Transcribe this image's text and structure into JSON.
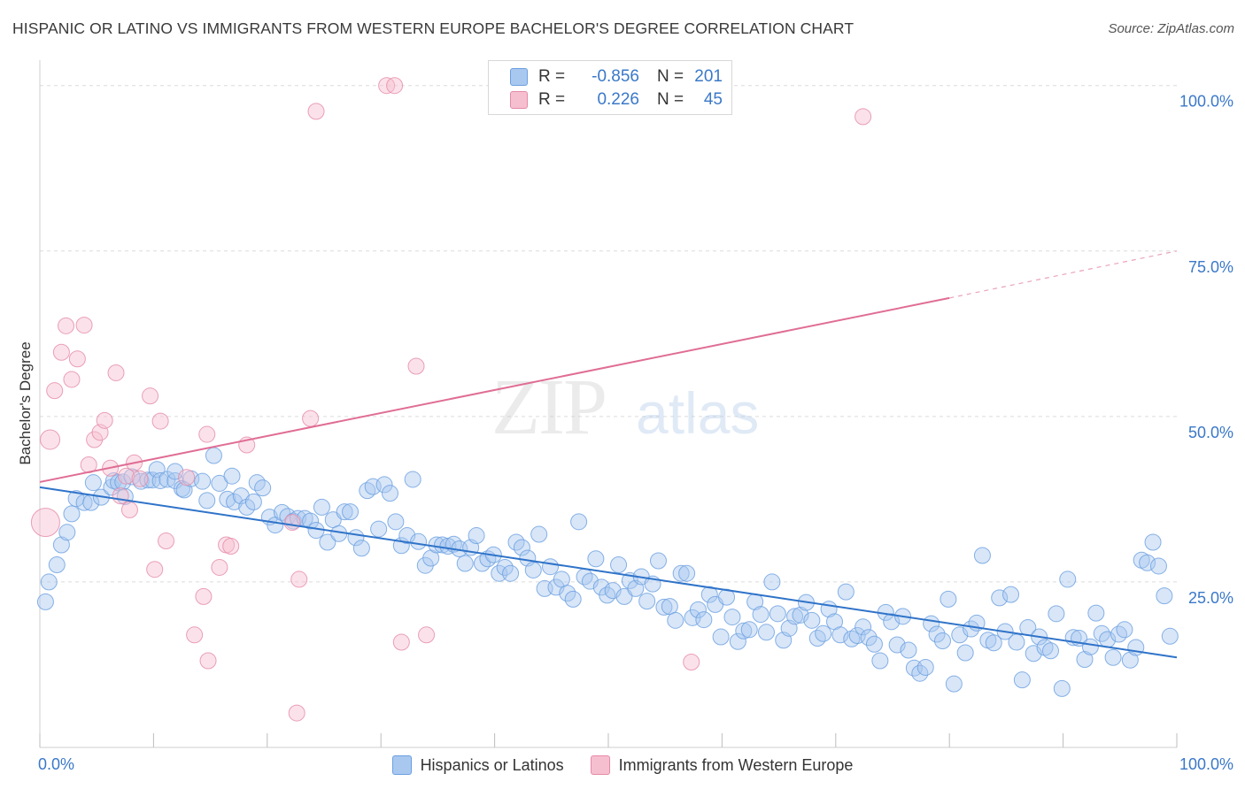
{
  "title": "HISPANIC OR LATINO VS IMMIGRANTS FROM WESTERN EUROPE BACHELOR'S DEGREE CORRELATION CHART",
  "source": "Source: ZipAtlas.com",
  "watermark": {
    "zip": "ZIP",
    "atlas": "atlas"
  },
  "stats": [
    {
      "r_label": "R =",
      "r_value": "-0.856",
      "n_label": "N =",
      "n_value": "201",
      "color": "#a9c8f0"
    },
    {
      "r_label": "R =",
      "r_value": "0.226",
      "n_label": "N =",
      "n_value": "45",
      "color": "#f6bfd0"
    }
  ],
  "chart_data": {
    "type": "scatter",
    "title": "HISPANIC OR LATINO VS IMMIGRANTS FROM WESTERN EUROPE BACHELOR'S DEGREE CORRELATION CHART",
    "xlabel": "",
    "ylabel": "Bachelor's Degree",
    "x_tick_labels": [
      "0.0%",
      "100.0%"
    ],
    "y_tick_labels": [
      "25.0%",
      "50.0%",
      "75.0%",
      "100.0%"
    ],
    "xlim": [
      0,
      100
    ],
    "ylim": [
      0,
      102.5
    ],
    "grid": true,
    "legend_position": "bottom",
    "series": [
      {
        "name": "Hispanics or Latinos",
        "color": "#6a9fe0",
        "fill": "#a9c8f0",
        "trend": {
          "x0": 0,
          "y0": 39.3,
          "x1": 100,
          "y1": 13.6
        },
        "points": [
          [
            0.5,
            22.0
          ],
          [
            0.8,
            25.0
          ],
          [
            1.5,
            27.6
          ],
          [
            1.9,
            30.6
          ],
          [
            2.4,
            32.5
          ],
          [
            2.8,
            35.3
          ],
          [
            3.2,
            37.6
          ],
          [
            3.9,
            37.0
          ],
          [
            4.5,
            37.0
          ],
          [
            4.7,
            40.0
          ],
          [
            5.4,
            37.8
          ],
          [
            6.3,
            39.3
          ],
          [
            6.5,
            40.3
          ],
          [
            6.9,
            40.0
          ],
          [
            7.3,
            40.1
          ],
          [
            7.5,
            37.9
          ],
          [
            8.1,
            40.9
          ],
          [
            8.9,
            40.2
          ],
          [
            9.5,
            40.4
          ],
          [
            9.9,
            40.4
          ],
          [
            10.3,
            42.0
          ],
          [
            10.6,
            40.3
          ],
          [
            11.2,
            40.5
          ],
          [
            11.9,
            40.3
          ],
          [
            11.9,
            41.7
          ],
          [
            12.5,
            39.1
          ],
          [
            12.7,
            38.9
          ],
          [
            13.3,
            40.6
          ],
          [
            14.3,
            40.2
          ],
          [
            14.7,
            37.3
          ],
          [
            15.3,
            44.1
          ],
          [
            15.8,
            39.9
          ],
          [
            16.5,
            37.5
          ],
          [
            16.9,
            41.0
          ],
          [
            17.1,
            37.1
          ],
          [
            17.7,
            38.0
          ],
          [
            18.2,
            36.3
          ],
          [
            18.8,
            37.1
          ],
          [
            19.1,
            40.0
          ],
          [
            19.6,
            39.2
          ],
          [
            20.2,
            34.8
          ],
          [
            20.7,
            33.6
          ],
          [
            21.3,
            35.5
          ],
          [
            21.8,
            34.9
          ],
          [
            22.3,
            34.2
          ],
          [
            22.7,
            34.6
          ],
          [
            23.3,
            34.6
          ],
          [
            23.8,
            34.2
          ],
          [
            24.3,
            32.8
          ],
          [
            24.8,
            36.3
          ],
          [
            25.3,
            31.0
          ],
          [
            25.8,
            34.4
          ],
          [
            26.3,
            32.3
          ],
          [
            26.8,
            35.6
          ],
          [
            27.3,
            35.6
          ],
          [
            27.8,
            31.7
          ],
          [
            28.3,
            30.1
          ],
          [
            28.8,
            38.8
          ],
          [
            29.3,
            39.4
          ],
          [
            29.8,
            33.0
          ],
          [
            30.3,
            39.7
          ],
          [
            30.8,
            38.4
          ],
          [
            31.3,
            34.1
          ],
          [
            31.8,
            30.5
          ],
          [
            32.3,
            32.0
          ],
          [
            32.8,
            40.5
          ],
          [
            33.3,
            31.1
          ],
          [
            33.9,
            27.5
          ],
          [
            34.4,
            28.6
          ],
          [
            34.9,
            30.6
          ],
          [
            35.4,
            30.6
          ],
          [
            35.9,
            30.4
          ],
          [
            36.4,
            30.7
          ],
          [
            36.9,
            30.0
          ],
          [
            37.4,
            27.8
          ],
          [
            37.9,
            30.2
          ],
          [
            38.4,
            32.0
          ],
          [
            38.9,
            27.8
          ],
          [
            39.4,
            28.5
          ],
          [
            39.9,
            29.1
          ],
          [
            40.4,
            26.3
          ],
          [
            40.9,
            27.2
          ],
          [
            41.4,
            26.3
          ],
          [
            41.9,
            31.0
          ],
          [
            42.4,
            30.2
          ],
          [
            42.9,
            28.6
          ],
          [
            43.4,
            26.8
          ],
          [
            43.9,
            32.2
          ],
          [
            44.4,
            24.0
          ],
          [
            44.9,
            27.3
          ],
          [
            45.4,
            24.2
          ],
          [
            45.9,
            25.4
          ],
          [
            46.4,
            23.3
          ],
          [
            46.9,
            22.4
          ],
          [
            47.4,
            34.1
          ],
          [
            47.9,
            25.8
          ],
          [
            48.4,
            25.1
          ],
          [
            48.9,
            28.5
          ],
          [
            49.4,
            24.2
          ],
          [
            49.9,
            23.0
          ],
          [
            50.4,
            23.7
          ],
          [
            50.9,
            27.6
          ],
          [
            51.4,
            22.8
          ],
          [
            51.9,
            25.2
          ],
          [
            52.4,
            24.0
          ],
          [
            52.9,
            25.8
          ],
          [
            53.4,
            22.1
          ],
          [
            53.9,
            24.7
          ],
          [
            54.4,
            28.2
          ],
          [
            54.9,
            21.2
          ],
          [
            55.4,
            21.3
          ],
          [
            55.9,
            19.2
          ],
          [
            56.4,
            26.3
          ],
          [
            56.9,
            26.3
          ],
          [
            57.4,
            19.6
          ],
          [
            57.9,
            20.8
          ],
          [
            58.4,
            19.3
          ],
          [
            58.9,
            23.1
          ],
          [
            59.4,
            21.6
          ],
          [
            59.9,
            16.7
          ],
          [
            60.4,
            22.7
          ],
          [
            60.9,
            19.7
          ],
          [
            61.4,
            16.0
          ],
          [
            61.9,
            17.6
          ],
          [
            62.4,
            17.8
          ],
          [
            62.9,
            22.0
          ],
          [
            63.4,
            20.1
          ],
          [
            63.9,
            17.4
          ],
          [
            64.4,
            25.0
          ],
          [
            64.9,
            20.2
          ],
          [
            65.4,
            16.2
          ],
          [
            65.9,
            18.0
          ],
          [
            66.4,
            19.8
          ],
          [
            66.9,
            20.0
          ],
          [
            67.4,
            21.9
          ],
          [
            67.9,
            19.2
          ],
          [
            68.4,
            16.5
          ],
          [
            68.9,
            17.2
          ],
          [
            69.4,
            20.9
          ],
          [
            69.9,
            19.0
          ],
          [
            70.4,
            17.0
          ],
          [
            70.9,
            23.5
          ],
          [
            71.4,
            16.4
          ],
          [
            71.9,
            16.9
          ],
          [
            72.4,
            18.2
          ],
          [
            72.9,
            16.6
          ],
          [
            73.4,
            15.6
          ],
          [
            73.9,
            13.1
          ],
          [
            74.4,
            20.4
          ],
          [
            74.9,
            19.0
          ],
          [
            75.4,
            15.5
          ],
          [
            75.9,
            19.8
          ],
          [
            76.4,
            14.7
          ],
          [
            76.9,
            12.0
          ],
          [
            77.4,
            11.2
          ],
          [
            77.9,
            12.1
          ],
          [
            78.4,
            18.7
          ],
          [
            78.9,
            17.1
          ],
          [
            79.4,
            16.1
          ],
          [
            79.9,
            22.4
          ],
          [
            80.4,
            9.6
          ],
          [
            80.9,
            17.0
          ],
          [
            81.4,
            14.3
          ],
          [
            81.9,
            17.9
          ],
          [
            82.4,
            18.8
          ],
          [
            82.9,
            29.0
          ],
          [
            83.4,
            16.2
          ],
          [
            83.9,
            15.8
          ],
          [
            84.4,
            22.6
          ],
          [
            84.9,
            17.5
          ],
          [
            85.4,
            23.1
          ],
          [
            85.9,
            15.9
          ],
          [
            86.4,
            10.2
          ],
          [
            86.9,
            18.1
          ],
          [
            87.4,
            14.2
          ],
          [
            87.9,
            16.7
          ],
          [
            88.4,
            15.1
          ],
          [
            88.9,
            14.6
          ],
          [
            89.4,
            20.2
          ],
          [
            89.9,
            8.9
          ],
          [
            90.4,
            25.4
          ],
          [
            90.9,
            16.6
          ],
          [
            91.4,
            16.5
          ],
          [
            91.9,
            13.3
          ],
          [
            92.4,
            15.2
          ],
          [
            92.9,
            20.3
          ],
          [
            93.4,
            17.2
          ],
          [
            93.9,
            16.3
          ],
          [
            94.4,
            13.6
          ],
          [
            94.9,
            17.1
          ],
          [
            95.4,
            17.8
          ],
          [
            95.9,
            13.2
          ],
          [
            96.4,
            15.1
          ],
          [
            96.9,
            28.3
          ],
          [
            97.4,
            27.9
          ],
          [
            97.9,
            31.0
          ],
          [
            98.4,
            27.4
          ],
          [
            98.9,
            22.9
          ],
          [
            99.4,
            16.8
          ]
        ]
      },
      {
        "name": "Immigrants from Western Europe",
        "color": "#e58aa6",
        "fill": "#f6bfd0",
        "trend": {
          "x0": 0,
          "y0": 40.1,
          "x1": 80,
          "y1": 67.9,
          "dash_to_x": 100,
          "dash_to_y": 75.0
        },
        "points": [
          [
            0.5,
            34.0
          ],
          [
            0.9,
            46.5
          ],
          [
            1.3,
            53.9
          ],
          [
            1.9,
            59.7
          ],
          [
            2.3,
            63.7
          ],
          [
            2.8,
            55.6
          ],
          [
            3.3,
            58.7
          ],
          [
            3.9,
            63.8
          ],
          [
            4.3,
            42.7
          ],
          [
            4.8,
            46.5
          ],
          [
            5.3,
            47.6
          ],
          [
            5.7,
            49.4
          ],
          [
            6.2,
            42.2
          ],
          [
            6.7,
            56.6
          ],
          [
            7.1,
            38.0
          ],
          [
            7.6,
            41.0
          ],
          [
            7.9,
            35.9
          ],
          [
            8.3,
            43.0
          ],
          [
            8.8,
            40.6
          ],
          [
            9.7,
            53.1
          ],
          [
            10.1,
            26.9
          ],
          [
            10.6,
            49.3
          ],
          [
            11.1,
            31.2
          ],
          [
            12.9,
            40.8
          ],
          [
            13.6,
            17.0
          ],
          [
            14.4,
            22.8
          ],
          [
            14.7,
            47.3
          ],
          [
            14.8,
            13.1
          ],
          [
            15.8,
            27.2
          ],
          [
            16.4,
            30.6
          ],
          [
            16.8,
            30.4
          ],
          [
            18.2,
            45.7
          ],
          [
            22.2,
            34.0
          ],
          [
            22.6,
            5.2
          ],
          [
            22.8,
            25.4
          ],
          [
            23.8,
            49.7
          ],
          [
            24.3,
            96.1
          ],
          [
            30.5,
            100.0
          ],
          [
            31.2,
            100.0
          ],
          [
            31.8,
            15.9
          ],
          [
            33.1,
            57.6
          ],
          [
            34.0,
            17.0
          ],
          [
            57.3,
            12.9
          ],
          [
            72.4,
            95.3
          ]
        ]
      }
    ]
  },
  "legend": [
    {
      "label": "Hispanics or Latinos",
      "color": "#a9c8f0",
      "border": "#6a9fe0"
    },
    {
      "label": "Immigrants from Western Europe",
      "color": "#f6bfd0",
      "border": "#e58aa6"
    }
  ]
}
